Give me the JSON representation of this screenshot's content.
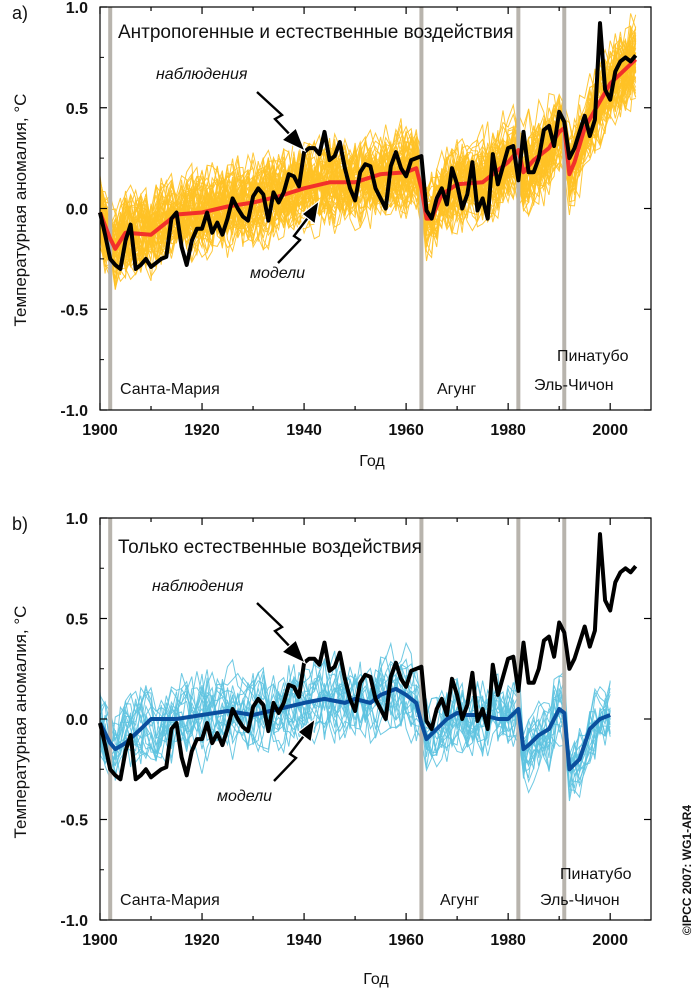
{
  "copyright": "©IPCC 2007: WG1-AR4",
  "colors": {
    "volcano_line": "#b8b4ad",
    "observed": "#000000",
    "panel_a_ensemble": "#ffc226",
    "panel_a_mean": "#f2302a",
    "panel_b_ensemble": "#5ec3e0",
    "panel_b_mean": "#0a4f9e"
  },
  "chart_data": [
    {
      "type": "line",
      "panel_label": "a)",
      "title": "Антропогенные и естественные воздействия",
      "xlabel": "Год",
      "ylabel": "Температурная аномалия, °C",
      "xlim": [
        1900,
        2008
      ],
      "ylim": [
        -1.0,
        1.0
      ],
      "xticks": [
        "1900",
        "1920",
        "1940",
        "1960",
        "1980",
        "2000"
      ],
      "yticks": [
        "1.0",
        "0.5",
        "0.0",
        "-0.5",
        "-1.0"
      ],
      "grid": false,
      "ensemble_runs": 58,
      "annotations": {
        "observed": "наблюдения",
        "models": "модели"
      },
      "volcanoes": [
        {
          "name": "Санта-Мария",
          "year": 1902
        },
        {
          "name": "Агунг",
          "year": 1963
        },
        {
          "name": "Эль-Чичон",
          "year": 1982
        },
        {
          "name": "Пинатубо",
          "year": 1991
        }
      ],
      "observed": {
        "name": "наблюдения",
        "x": [
          1900,
          1901,
          1902,
          1903,
          1904,
          1905,
          1906,
          1907,
          1908,
          1909,
          1910,
          1911,
          1912,
          1913,
          1914,
          1915,
          1916,
          1917,
          1918,
          1919,
          1920,
          1921,
          1922,
          1923,
          1924,
          1925,
          1926,
          1927,
          1928,
          1929,
          1930,
          1931,
          1932,
          1933,
          1934,
          1935,
          1936,
          1937,
          1938,
          1939,
          1940,
          1941,
          1942,
          1943,
          1944,
          1945,
          1946,
          1947,
          1948,
          1949,
          1950,
          1951,
          1952,
          1953,
          1954,
          1955,
          1956,
          1957,
          1958,
          1959,
          1960,
          1961,
          1962,
          1963,
          1964,
          1965,
          1966,
          1967,
          1968,
          1969,
          1970,
          1971,
          1972,
          1973,
          1974,
          1975,
          1976,
          1977,
          1978,
          1979,
          1980,
          1981,
          1982,
          1983,
          1984,
          1985,
          1986,
          1987,
          1988,
          1989,
          1990,
          1991,
          1992,
          1993,
          1994,
          1995,
          1996,
          1997,
          1998,
          1999,
          2000,
          2001,
          2002,
          2003,
          2004,
          2005
        ],
        "values": [
          -0.02,
          -0.13,
          -0.25,
          -0.28,
          -0.3,
          -0.16,
          -0.08,
          -0.3,
          -0.28,
          -0.25,
          -0.29,
          -0.27,
          -0.25,
          -0.24,
          -0.05,
          -0.02,
          -0.19,
          -0.28,
          -0.16,
          -0.1,
          -0.1,
          -0.02,
          -0.12,
          -0.07,
          -0.13,
          -0.05,
          0.05,
          0.0,
          -0.04,
          -0.06,
          0.06,
          0.1,
          0.07,
          -0.06,
          0.08,
          0.03,
          0.08,
          0.17,
          0.16,
          0.11,
          0.28,
          0.3,
          0.3,
          0.27,
          0.38,
          0.24,
          0.26,
          0.33,
          0.2,
          0.1,
          0.04,
          0.18,
          0.22,
          0.21,
          0.1,
          0.05,
          0.0,
          0.21,
          0.28,
          0.2,
          0.16,
          0.24,
          0.25,
          0.26,
          -0.01,
          -0.05,
          0.05,
          0.1,
          0.02,
          0.2,
          0.12,
          0.0,
          0.07,
          0.23,
          -0.01,
          0.05,
          -0.05,
          0.27,
          0.12,
          0.21,
          0.3,
          0.31,
          0.14,
          0.38,
          0.18,
          0.18,
          0.25,
          0.39,
          0.41,
          0.31,
          0.48,
          0.43,
          0.25,
          0.3,
          0.38,
          0.46,
          0.36,
          0.44,
          0.92,
          0.59,
          0.54,
          0.68,
          0.73,
          0.75,
          0.73,
          0.76
        ]
      },
      "model_mean": {
        "name": "модели",
        "x": [
          1900,
          1902,
          1903,
          1905,
          1910,
          1915,
          1920,
          1925,
          1930,
          1935,
          1940,
          1945,
          1950,
          1955,
          1960,
          1962,
          1963,
          1964,
          1965,
          1967,
          1970,
          1975,
          1980,
          1982,
          1983,
          1985,
          1988,
          1990,
          1991,
          1992,
          1993,
          1995,
          2000,
          2005
        ],
        "values": [
          -0.02,
          -0.15,
          -0.2,
          -0.12,
          -0.13,
          -0.03,
          -0.02,
          0.01,
          0.03,
          0.06,
          0.1,
          0.13,
          0.13,
          0.17,
          0.18,
          0.2,
          0.1,
          -0.05,
          -0.05,
          0.07,
          0.12,
          0.13,
          0.23,
          0.29,
          0.18,
          0.24,
          0.3,
          0.38,
          0.4,
          0.17,
          0.23,
          0.4,
          0.62,
          0.74
        ]
      }
    },
    {
      "type": "line",
      "panel_label": "b)",
      "title": "Только естественные воздействия",
      "xlabel": "Год",
      "ylabel": "Температурная аномалия, °C",
      "xlim": [
        1900,
        2008
      ],
      "ylim": [
        -1.0,
        1.0
      ],
      "xticks": [
        "1900",
        "1920",
        "1940",
        "1960",
        "1980",
        "2000"
      ],
      "yticks": [
        "1.0",
        "0.5",
        "0.0",
        "-0.5",
        "-1.0"
      ],
      "grid": false,
      "ensemble_runs": 19,
      "annotations": {
        "observed": "наблюдения",
        "models": "модели"
      },
      "volcanoes": [
        {
          "name": "Санта-Мария",
          "year": 1902
        },
        {
          "name": "Агунг",
          "year": 1963
        },
        {
          "name": "Эль-Чичон",
          "year": 1982
        },
        {
          "name": "Пинатубо",
          "year": 1991
        }
      ],
      "observed": {
        "name": "наблюдения",
        "x": [
          1900,
          1901,
          1902,
          1903,
          1904,
          1905,
          1906,
          1907,
          1908,
          1909,
          1910,
          1911,
          1912,
          1913,
          1914,
          1915,
          1916,
          1917,
          1918,
          1919,
          1920,
          1921,
          1922,
          1923,
          1924,
          1925,
          1926,
          1927,
          1928,
          1929,
          1930,
          1931,
          1932,
          1933,
          1934,
          1935,
          1936,
          1937,
          1938,
          1939,
          1940,
          1941,
          1942,
          1943,
          1944,
          1945,
          1946,
          1947,
          1948,
          1949,
          1950,
          1951,
          1952,
          1953,
          1954,
          1955,
          1956,
          1957,
          1958,
          1959,
          1960,
          1961,
          1962,
          1963,
          1964,
          1965,
          1966,
          1967,
          1968,
          1969,
          1970,
          1971,
          1972,
          1973,
          1974,
          1975,
          1976,
          1977,
          1978,
          1979,
          1980,
          1981,
          1982,
          1983,
          1984,
          1985,
          1986,
          1987,
          1988,
          1989,
          1990,
          1991,
          1992,
          1993,
          1994,
          1995,
          1996,
          1997,
          1998,
          1999,
          2000,
          2001,
          2002,
          2003,
          2004,
          2005
        ],
        "values": [
          -0.02,
          -0.13,
          -0.25,
          -0.28,
          -0.3,
          -0.16,
          -0.08,
          -0.3,
          -0.28,
          -0.25,
          -0.29,
          -0.27,
          -0.25,
          -0.24,
          -0.05,
          -0.02,
          -0.19,
          -0.28,
          -0.16,
          -0.1,
          -0.1,
          -0.02,
          -0.12,
          -0.07,
          -0.13,
          -0.05,
          0.05,
          0.0,
          -0.04,
          -0.06,
          0.06,
          0.1,
          0.07,
          -0.06,
          0.08,
          0.03,
          0.08,
          0.17,
          0.16,
          0.11,
          0.28,
          0.3,
          0.3,
          0.27,
          0.38,
          0.24,
          0.26,
          0.33,
          0.2,
          0.1,
          0.04,
          0.18,
          0.22,
          0.21,
          0.1,
          0.05,
          0.0,
          0.21,
          0.28,
          0.2,
          0.16,
          0.24,
          0.25,
          0.26,
          -0.01,
          -0.05,
          0.05,
          0.1,
          0.02,
          0.2,
          0.12,
          0.0,
          0.07,
          0.23,
          -0.01,
          0.05,
          -0.05,
          0.27,
          0.12,
          0.21,
          0.3,
          0.31,
          0.14,
          0.38,
          0.18,
          0.18,
          0.25,
          0.39,
          0.41,
          0.31,
          0.48,
          0.43,
          0.25,
          0.3,
          0.38,
          0.46,
          0.36,
          0.44,
          0.92,
          0.59,
          0.54,
          0.68,
          0.73,
          0.75,
          0.73,
          0.76
        ]
      },
      "model_mean": {
        "name": "модели",
        "x": [
          1900,
          1902,
          1903,
          1905,
          1908,
          1910,
          1915,
          1920,
          1925,
          1930,
          1935,
          1940,
          1944,
          1948,
          1950,
          1953,
          1955,
          1958,
          1960,
          1962,
          1963,
          1964,
          1966,
          1968,
          1970,
          1972,
          1975,
          1978,
          1980,
          1982,
          1983,
          1984,
          1986,
          1988,
          1990,
          1991,
          1992,
          1994,
          1996,
          1998,
          2000
        ],
        "values": [
          -0.02,
          -0.12,
          -0.15,
          -0.12,
          -0.05,
          0.0,
          0.0,
          0.02,
          0.04,
          0.02,
          0.05,
          0.08,
          0.1,
          0.08,
          0.1,
          0.08,
          0.12,
          0.15,
          0.12,
          0.08,
          -0.02,
          -0.1,
          -0.05,
          0.0,
          0.03,
          0.02,
          0.02,
          0.0,
          0.0,
          0.05,
          -0.15,
          -0.13,
          -0.08,
          -0.05,
          0.05,
          0.03,
          -0.25,
          -0.2,
          -0.05,
          0.0,
          0.02
        ]
      }
    }
  ]
}
